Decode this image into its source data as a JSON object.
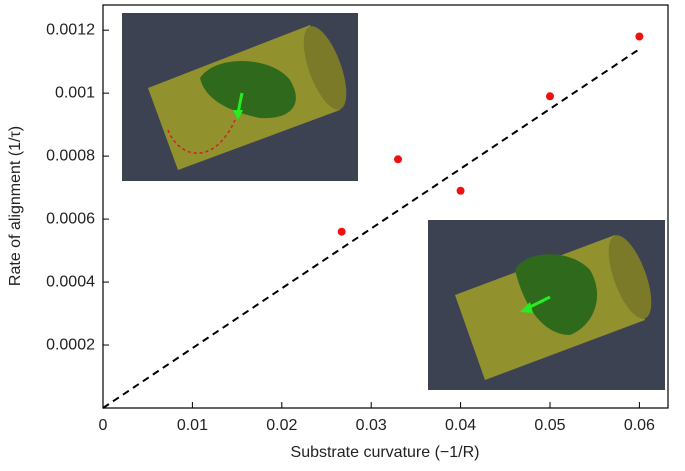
{
  "chart_data": {
    "type": "scatter",
    "xlabel": "Substrate curvature (−1/R)",
    "ylabel": "Rate of alignment (1/τ)",
    "x": [
      0.0267,
      0.033,
      0.04,
      0.05,
      0.06
    ],
    "values": [
      0.00056,
      0.00079,
      0.00069,
      0.00099,
      0.00118
    ],
    "color": "#ee1111",
    "fit_line": {
      "x": [
        0,
        0.06
      ],
      "values": [
        0,
        0.00114
      ],
      "color": "#000000"
    },
    "xlim": [
      0,
      0.0632
    ],
    "ylim": [
      0,
      0.00128
    ],
    "xticks": [
      0,
      0.01,
      0.02,
      0.03,
      0.04,
      0.05,
      0.06
    ],
    "yticks": [
      0.0002,
      0.0004,
      0.0006,
      0.0008,
      0.001,
      0.0012
    ]
  }
}
